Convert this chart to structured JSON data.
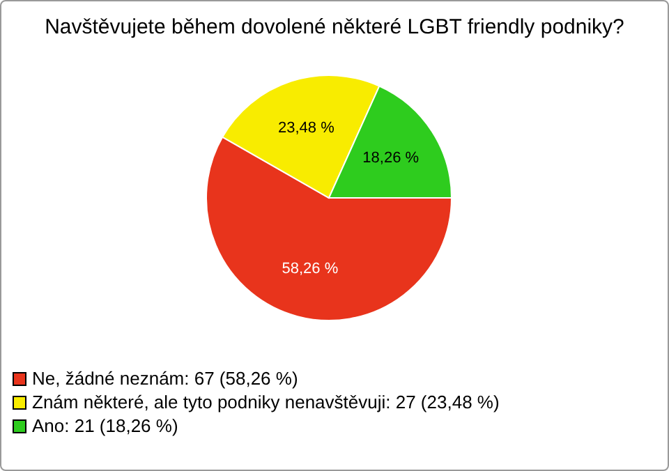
{
  "chart_data": {
    "type": "pie",
    "title": "Navštěvujete během dovolené některé LGBT friendly podniky?",
    "categories": [
      "Ne, žádné neznám: 67 (58,26 %)",
      "Znám některé, ale tyto podniky nenavštěvuji: 27 (23,48 %)",
      "Ano: 21 (18,26 %)"
    ],
    "values": [
      58.26,
      23.48,
      18.26
    ],
    "colors": [
      "#e8341c",
      "#f8ec00",
      "#2ecc1e"
    ],
    "value_labels": [
      "58,26 %",
      "23,48 %",
      "18,26 %"
    ],
    "legend": "bottom left"
  }
}
